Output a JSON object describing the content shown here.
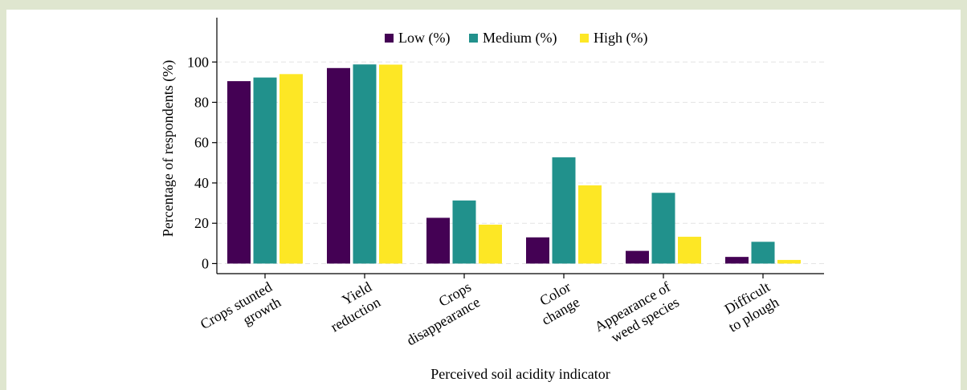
{
  "chart_data": {
    "type": "bar",
    "title": "",
    "xlabel": "Perceived soil acidity indicator",
    "ylabel": "Percentage of respondents (%)",
    "ylim": [
      -5,
      122
    ],
    "yticks": [
      0,
      20,
      40,
      60,
      80,
      100
    ],
    "grid": "dashed horizontal",
    "legend_position": "top-center",
    "categories": [
      [
        "Crops stunted",
        "growth"
      ],
      [
        "Yield",
        "reduction"
      ],
      [
        "Crops",
        "disappearance"
      ],
      [
        "Color",
        "change"
      ],
      [
        "Appearance of",
        "weed species"
      ],
      [
        "Difficult",
        "to plough"
      ]
    ],
    "series": [
      {
        "name": "Low (%)",
        "color": "#440154",
        "values": [
          90.5,
          97,
          22.7,
          13,
          6.3,
          3.3
        ]
      },
      {
        "name": "Medium (%)",
        "color": "#21918c",
        "values": [
          92.3,
          98.8,
          31.3,
          52.7,
          35.1,
          10.8
        ]
      },
      {
        "name": "High (%)",
        "color": "#fde725",
        "values": [
          94,
          98.7,
          19.3,
          38.8,
          13.3,
          1.8
        ]
      }
    ]
  }
}
